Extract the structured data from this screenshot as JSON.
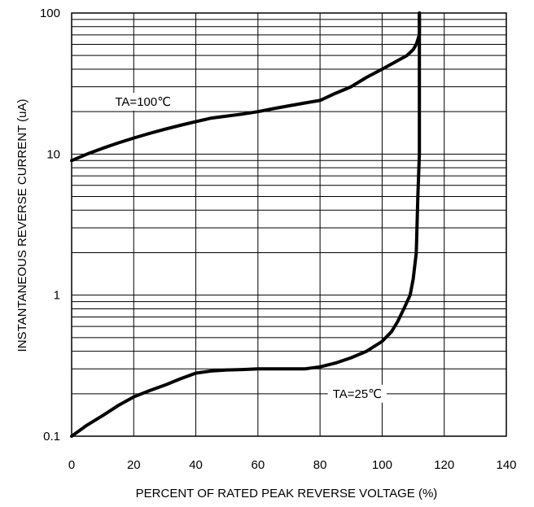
{
  "chart_data": {
    "type": "line",
    "title": "",
    "xlabel": "PERCENT OF RATED PEAK REVERSE VOLTAGE (%)",
    "ylabel": "INSTANTANEOUS REVERSE CURRENT (uA)",
    "xlim": [
      0,
      140
    ],
    "ylim": [
      0.1,
      100
    ],
    "yscale": "log",
    "grid": true,
    "x_ticks": [
      "0",
      "20",
      "40",
      "60",
      "80",
      "100",
      "120",
      "140"
    ],
    "y_ticks": [
      "0.1",
      "1",
      "10",
      "100"
    ],
    "series": [
      {
        "name": "TA=100℃",
        "color": "#000000",
        "x": [
          0,
          5,
          10,
          15,
          20,
          25,
          30,
          35,
          40,
          45,
          50,
          55,
          60,
          65,
          70,
          75,
          80,
          85,
          90,
          95,
          100,
          105,
          108,
          110,
          111,
          112,
          112,
          112
        ],
        "y": [
          9,
          10,
          11,
          12,
          13,
          14,
          15,
          16,
          17,
          18,
          18.6,
          19.2,
          20,
          21,
          22,
          23,
          24,
          27,
          30,
          35,
          40,
          46,
          50,
          55,
          60,
          70,
          85,
          100
        ]
      },
      {
        "name": "TA=25℃",
        "color": "#000000",
        "x": [
          0,
          5,
          10,
          15,
          20,
          25,
          30,
          35,
          40,
          45,
          50,
          55,
          60,
          65,
          70,
          75,
          80,
          85,
          90,
          95,
          100,
          103,
          105,
          107,
          109,
          110,
          111,
          111.5,
          112,
          112,
          112
        ],
        "y": [
          0.1,
          0.12,
          0.14,
          0.165,
          0.19,
          0.21,
          0.23,
          0.255,
          0.28,
          0.29,
          0.295,
          0.297,
          0.3,
          0.3,
          0.3,
          0.3,
          0.31,
          0.33,
          0.36,
          0.4,
          0.47,
          0.55,
          0.65,
          0.8,
          1,
          1.3,
          2,
          5,
          10,
          40,
          100
        ]
      }
    ]
  }
}
